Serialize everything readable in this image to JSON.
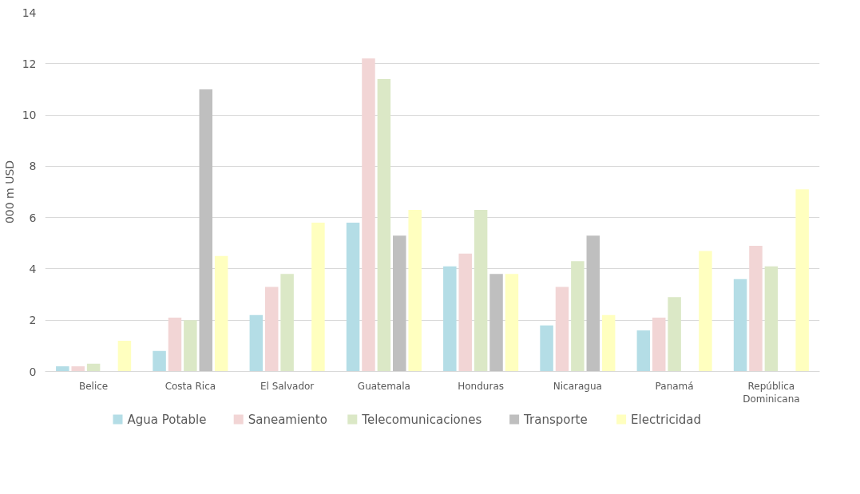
{
  "chart_data": {
    "type": "bar",
    "ylabel": "000 m USD",
    "categories": [
      "Belice",
      "Costa Rica",
      "El Salvador",
      "Guatemala",
      "Honduras",
      "Nicaragua",
      "Panamá",
      "República Dominicana"
    ],
    "series": [
      {
        "name": "Agua Potable",
        "color": "#b4dde6",
        "values": [
          0.2,
          0.8,
          2.2,
          5.8,
          4.1,
          1.8,
          1.6,
          3.6
        ]
      },
      {
        "name": "Saneamiento",
        "color": "#f2d5d5",
        "values": [
          0.2,
          2.1,
          3.3,
          12.2,
          4.6,
          3.3,
          2.1,
          4.9
        ]
      },
      {
        "name": "Telecomunicaciones",
        "color": "#dbe8c6",
        "values": [
          0.3,
          2.0,
          3.8,
          11.4,
          6.3,
          4.3,
          2.9,
          4.1
        ]
      },
      {
        "name": "Transporte",
        "color": "#bfbfbf",
        "values": [
          null,
          11.0,
          null,
          5.3,
          3.8,
          5.3,
          null,
          null
        ]
      },
      {
        "name": "Electricidad",
        "color": "#ffffbf",
        "values": [
          1.2,
          4.5,
          5.8,
          6.3,
          3.8,
          2.2,
          4.7,
          7.1
        ]
      }
    ],
    "ylim": [
      0,
      14
    ],
    "yticks": [
      0,
      2,
      4,
      6,
      8,
      10,
      12,
      14
    ],
    "grid": "y",
    "legend": "bottom"
  }
}
